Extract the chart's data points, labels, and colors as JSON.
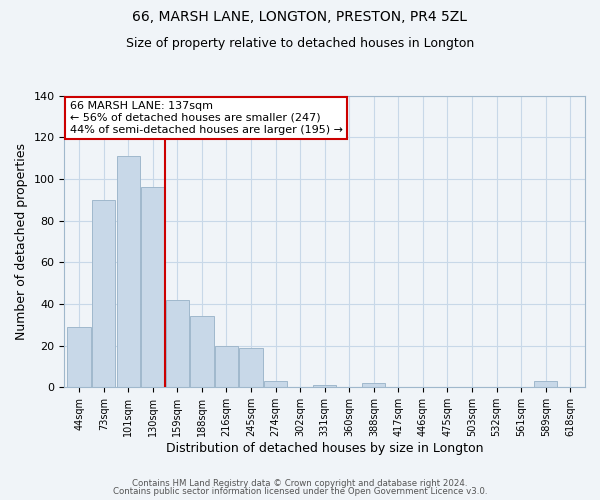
{
  "title": "66, MARSH LANE, LONGTON, PRESTON, PR4 5ZL",
  "subtitle": "Size of property relative to detached houses in Longton",
  "xlabel": "Distribution of detached houses by size in Longton",
  "ylabel": "Number of detached properties",
  "bar_labels": [
    "44sqm",
    "73sqm",
    "101sqm",
    "130sqm",
    "159sqm",
    "188sqm",
    "216sqm",
    "245sqm",
    "274sqm",
    "302sqm",
    "331sqm",
    "360sqm",
    "388sqm",
    "417sqm",
    "446sqm",
    "475sqm",
    "503sqm",
    "532sqm",
    "561sqm",
    "589sqm",
    "618sqm"
  ],
  "bar_values": [
    29,
    90,
    111,
    96,
    42,
    34,
    20,
    19,
    3,
    0,
    1,
    0,
    2,
    0,
    0,
    0,
    0,
    0,
    0,
    3,
    0
  ],
  "bar_color": "#c8d8e8",
  "bar_edge_color": "#a0b8cc",
  "vline_color": "#cc0000",
  "vline_index": 3,
  "ylim": [
    0,
    140
  ],
  "yticks": [
    0,
    20,
    40,
    60,
    80,
    100,
    120,
    140
  ],
  "annotation_line1": "66 MARSH LANE: 137sqm",
  "annotation_line2": "← 56% of detached houses are smaller (247)",
  "annotation_line3": "44% of semi-detached houses are larger (195) →",
  "annotation_box_color": "#ffffff",
  "annotation_box_edge": "#cc0000",
  "footer_line1": "Contains HM Land Registry data © Crown copyright and database right 2024.",
  "footer_line2": "Contains public sector information licensed under the Open Government Licence v3.0.",
  "background_color": "#f0f4f8",
  "plot_bg_color": "#f0f4f8",
  "grid_color": "#c8d8e8",
  "title_fontsize": 10,
  "subtitle_fontsize": 9,
  "tick_fontsize": 7,
  "axis_label_fontsize": 9
}
